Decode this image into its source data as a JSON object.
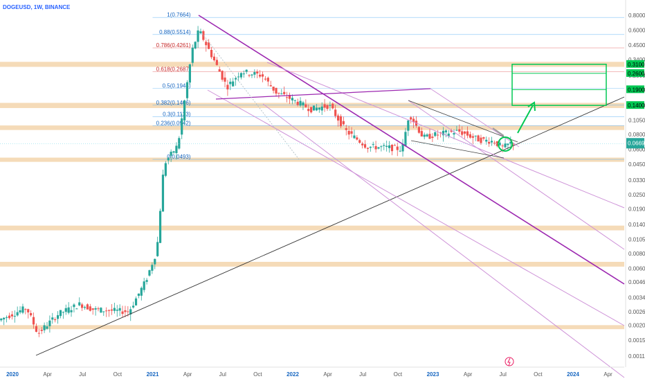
{
  "header": {
    "title": "DOGEUSD, 1W, BINANCE"
  },
  "colors": {
    "up": "#26a69a",
    "down": "#ef5350",
    "zone": "#f2cfa0",
    "purple": "#9c27b0",
    "channel": "#ce93d8",
    "trend": "#333333",
    "fib": "#64b5f6",
    "fib_red": "#e57373",
    "target": "#00c853"
  },
  "chart_data": {
    "type": "candlestick",
    "title": "DOGEUSD, 1W, BINANCE",
    "x_axis": {
      "ticks": [
        "2020",
        "Apr",
        "Jul",
        "Oct",
        "2021",
        "Apr",
        "Jul",
        "Oct",
        "2022",
        "Apr",
        "Jul",
        "Oct",
        "2023",
        "Apr",
        "Jul",
        "Oct",
        "2024",
        "Apr"
      ]
    },
    "y_axis": {
      "scale": "log",
      "ticks": [
        "0.8000",
        "0.6000",
        "0.4500",
        "0.3400",
        "0.2500",
        "0.1900",
        "0.1400",
        "0.1050",
        "0.0800",
        "0.0600",
        "0.0450",
        "0.0330",
        "0.0250",
        "0.0190",
        "0.0140",
        "0.0105",
        "0.0080",
        "0.0060",
        "0.0046",
        "0.0034",
        "0.0026",
        "0.0020",
        "0.0015",
        "0.0011"
      ],
      "current_price_tag": "0.0669",
      "price_bubbles": [
        "0.3100",
        "0.2600",
        "0.1900",
        "0.1400"
      ]
    },
    "fib_levels": [
      {
        "label": "1(0.7664)",
        "value": 0.7664
      },
      {
        "label": "0.88(0.5514)",
        "value": 0.5514
      },
      {
        "label": "0.786(0.4261)",
        "value": 0.4261
      },
      {
        "label": "0.618(0.2687)",
        "value": 0.2687
      },
      {
        "label": "0.5(0.1944)",
        "value": 0.1944
      },
      {
        "label": "0.382(0.1406)",
        "value": 0.1406
      },
      {
        "label": "0.3(0.1123)",
        "value": 0.1123
      },
      {
        "label": "0.236(0.0942)",
        "value": 0.0942
      },
      {
        "label": "0(0.0493)",
        "value": 0.0493
      }
    ],
    "support_zones": [
      {
        "low": 0.295,
        "high": 0.325
      },
      {
        "low": 0.133,
        "high": 0.147
      },
      {
        "low": 0.087,
        "high": 0.095
      },
      {
        "low": 0.047,
        "high": 0.051
      },
      {
        "low": 0.0125,
        "high": 0.0137
      },
      {
        "low": 0.0062,
        "high": 0.0068
      },
      {
        "low": 0.00185,
        "high": 0.002
      }
    ],
    "target_box": {
      "low": 0.14,
      "high": 0.31,
      "lines": [
        0.26,
        0.19
      ]
    },
    "annotations": [
      "pattern: falling wedge",
      "breakout circle",
      "arrow toward target box"
    ]
  }
}
